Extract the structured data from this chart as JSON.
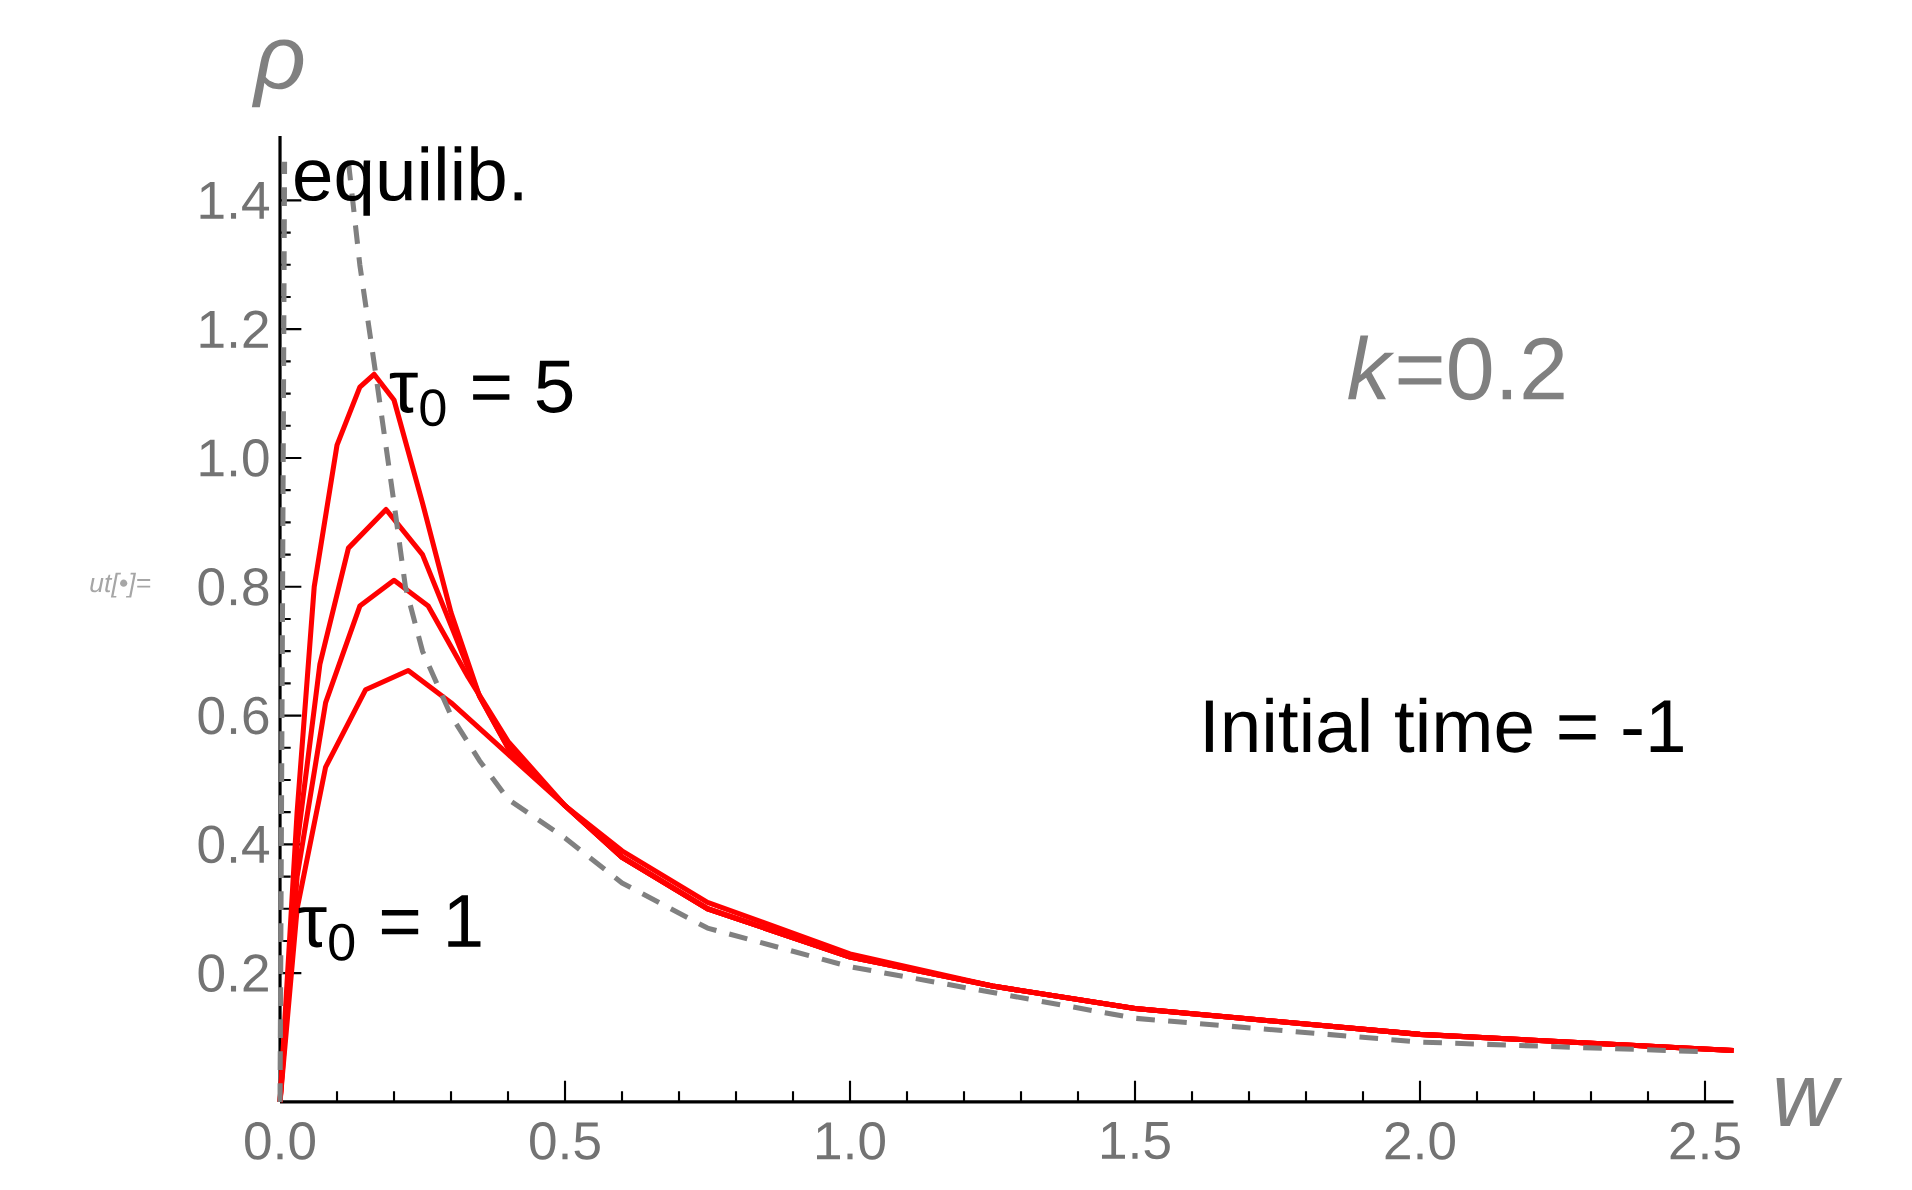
{
  "chart_data": {
    "type": "line",
    "xlabel": "w",
    "ylabel": "ρ",
    "xlim": [
      0,
      2.55
    ],
    "ylim": [
      0,
      1.5
    ],
    "xticks": [
      {
        "value": 0,
        "label": "0.0"
      },
      {
        "value": 0.5,
        "label": "0.5"
      },
      {
        "value": 1,
        "label": "1.0"
      },
      {
        "value": 1.5,
        "label": "1.5"
      },
      {
        "value": 2,
        "label": "2.0"
      },
      {
        "value": 2.5,
        "label": "2.5"
      }
    ],
    "yticks": [
      0.2,
      0.4,
      0.6,
      0.8,
      {
        "value": 1,
        "label": "1.0"
      },
      1.2,
      1.4
    ],
    "marker": "none",
    "series": [
      {
        "color": "#ff0000",
        "line_style": "solid",
        "x": [
          0,
          0.03,
          0.06,
          0.1,
          0.14,
          0.165,
          0.2,
          0.25,
          0.3,
          0.35,
          0.4,
          0.5,
          0.6,
          0.75,
          1.0,
          1.25,
          1.5,
          2.0,
          2.55
        ],
        "values": [
          0,
          0.45,
          0.8,
          1.02,
          1.11,
          1.13,
          1.09,
          0.93,
          0.76,
          0.63,
          0.55,
          0.46,
          0.38,
          0.3,
          0.225,
          0.18,
          0.145,
          0.105,
          0.08
        ]
      },
      {
        "color": "#ff0000",
        "line_style": "solid",
        "x": [
          0,
          0.03,
          0.07,
          0.12,
          0.186,
          0.25,
          0.3,
          0.35,
          0.4,
          0.5,
          0.6,
          0.75,
          1.0,
          1.25,
          1.5,
          2.0,
          2.55
        ],
        "values": [
          0,
          0.4,
          0.68,
          0.86,
          0.92,
          0.85,
          0.74,
          0.63,
          0.55,
          0.46,
          0.38,
          0.3,
          0.225,
          0.18,
          0.145,
          0.105,
          0.08
        ]
      },
      {
        "color": "#ff0000",
        "line_style": "solid",
        "x": [
          0,
          0.03,
          0.08,
          0.14,
          0.2,
          0.26,
          0.33,
          0.4,
          0.5,
          0.6,
          0.75,
          1.0,
          1.25,
          1.5,
          2.0,
          2.55
        ],
        "values": [
          0,
          0.35,
          0.62,
          0.77,
          0.81,
          0.77,
          0.66,
          0.56,
          0.46,
          0.38,
          0.3,
          0.225,
          0.18,
          0.145,
          0.105,
          0.08
        ]
      },
      {
        "color": "#ff0000",
        "line_style": "solid",
        "x": [
          0,
          0.03,
          0.08,
          0.15,
          0.225,
          0.3,
          0.4,
          0.5,
          0.6,
          0.75,
          1.0,
          1.25,
          1.5,
          2.0,
          2.55
        ],
        "values": [
          0,
          0.3,
          0.52,
          0.64,
          0.67,
          0.62,
          0.54,
          0.46,
          0.39,
          0.31,
          0.23,
          0.18,
          0.145,
          0.105,
          0.08
        ]
      },
      {
        "color": "#808080",
        "line_style": "dashed",
        "x": [
          0,
          0.004,
          0.008,
          0.05,
          0.12,
          0.14,
          0.168,
          0.2,
          0.22,
          0.25,
          0.3,
          0.35,
          0.4,
          0.5,
          0.6,
          0.75,
          1.0,
          1.5,
          2.0,
          2.5
        ],
        "values": [
          0,
          0.7,
          1.46,
          null,
          1.46,
          1.3,
          1.13,
          0.93,
          0.8,
          0.7,
          0.6,
          0.53,
          0.47,
          0.41,
          0.34,
          0.27,
          0.21,
          0.13,
          0.093,
          0.078
        ]
      }
    ],
    "annotations": [
      {
        "text": "equilib.",
        "x": 0.02,
        "y": 1.43
      },
      {
        "text": "τ$_{0}$ = 5",
        "x": 0.19,
        "y": 1.1
      },
      {
        "text": "τ$_{0}$ = 1",
        "x": 0.03,
        "y": 0.27
      },
      "*k*=0.2",
      "Initial time = -1",
      "ut[•]="
    ]
  }
}
